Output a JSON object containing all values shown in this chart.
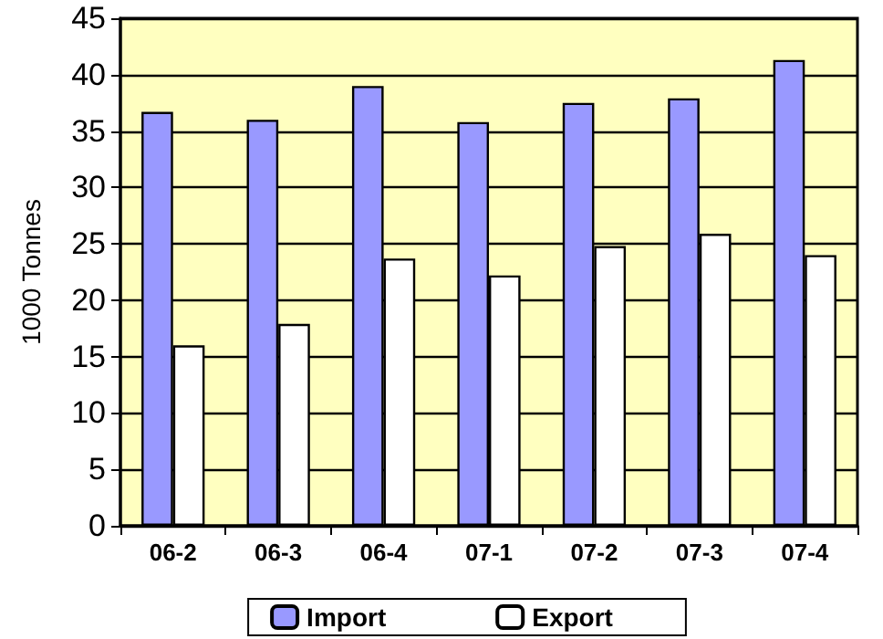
{
  "chart_data": {
    "type": "bar",
    "ylabel": "1000 Tonnes",
    "categories": [
      "06-2",
      "06-3",
      "06-4",
      "07-1",
      "07-2",
      "07-3",
      "07-4"
    ],
    "series": [
      {
        "name": "Import",
        "color": "#9999ff",
        "values": [
          36.7,
          36,
          39,
          35.8,
          37.5,
          37.9,
          41.3
        ]
      },
      {
        "name": "Export",
        "color": "#ffffff",
        "values": [
          16,
          17.9,
          23.7,
          22.2,
          24.8,
          25.9,
          24
        ]
      }
    ],
    "ylim": [
      0,
      45
    ],
    "yticks": [
      0,
      5,
      10,
      15,
      20,
      25,
      30,
      35,
      40,
      45
    ],
    "grid": "y",
    "legend": "bottom"
  }
}
